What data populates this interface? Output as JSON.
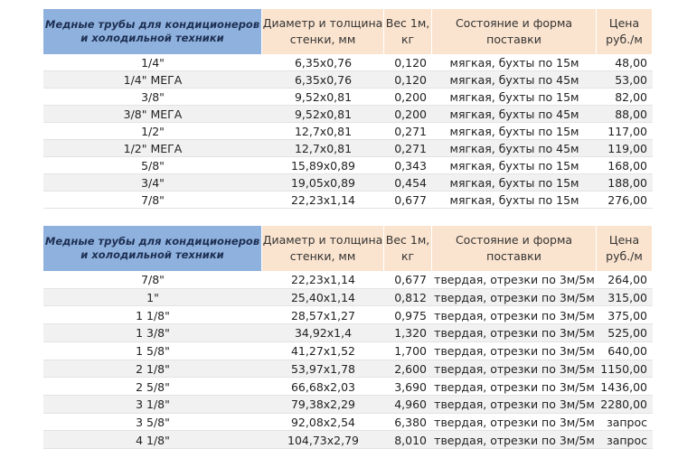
{
  "tables": [
    {
      "header": [
        "Медные трубы для кондиционеров и холодильной техники",
        "Диаметр и толщина стенки, мм",
        "Вес 1м, кг",
        "Состояние и форма поставки",
        "Цена руб./м"
      ],
      "rows": [
        [
          "1/4\"",
          "6,35x0,76",
          "0,120",
          "мягкая, бухты по 15м",
          "48,00"
        ],
        [
          "1/4\" МЕГА",
          "6,35x0,76",
          "0,120",
          "мягкая, бухты по 45м",
          "53,00"
        ],
        [
          "3/8\"",
          "9,52x0,81",
          "0,200",
          "мягкая, бухты по 15м",
          "82,00"
        ],
        [
          "3/8\" МЕГА",
          "9,52x0,81",
          "0,200",
          "мягкая, бухты по 45м",
          "88,00"
        ],
        [
          "1/2\"",
          "12,7x0,81",
          "0,271",
          "мягкая, бухты по 15м",
          "117,00"
        ],
        [
          "1/2\" МЕГА",
          "12,7x0,81",
          "0,271",
          "мягкая, бухты по 45м",
          "119,00"
        ],
        [
          "5/8\"",
          "15,89x0,89",
          "0,343",
          "мягкая, бухты по 15м",
          "168,00"
        ],
        [
          "3/4\"",
          "19,05x0,89",
          "0,454",
          "мягкая, бухты по 15м",
          "188,00"
        ],
        [
          "7/8\"",
          "22,23x1,14",
          "0,677",
          "мягкая, бухты по 15м",
          "276,00"
        ]
      ]
    },
    {
      "header": [
        "Медные трубы для кондиционеров и холодильной техники",
        "Диаметр и толщина стенки, мм",
        "Вес 1м, кг",
        "Состояние и форма поставки",
        "Цена руб./м"
      ],
      "rows": [
        [
          "7/8\"",
          "22,23x1,14",
          "0,677",
          "твердая, отрезки по 3м/5м",
          "264,00"
        ],
        [
          "1\"",
          "25,40x1,14",
          "0,812",
          "твердая, отрезки по 3м/5м",
          "315,00"
        ],
        [
          "1 1/8\"",
          "28,57x1,27",
          "0,975",
          "твердая, отрезки по 3м/5м",
          "375,00"
        ],
        [
          "1 3/8\"",
          "34,92x1,4",
          "1,320",
          "твердая, отрезки по 3м/5м",
          "525,00"
        ],
        [
          "1 5/8\"",
          "41,27x1,52",
          "1,700",
          "твердая, отрезки по 3м/5м",
          "640,00"
        ],
        [
          "2 1/8\"",
          "53,97x1,78",
          "2,600",
          "твердая, отрезки по 3м/5м",
          "1150,00"
        ],
        [
          "2 5/8\"",
          "66,68x2,03",
          "3,690",
          "твердая, отрезки по 3м/5м",
          "1436,00"
        ],
        [
          "3 1/8\"",
          "79,38x2,29",
          "4,960",
          "твердая, отрезки по 3м/5м",
          "2280,00"
        ],
        [
          "3 5/8\"",
          "92,08x2,54",
          "6,380",
          "твердая, отрезки по 3м/5м",
          "запрос"
        ],
        [
          "4 1/8\"",
          "104,73x2,79",
          "8,010",
          "твердая, отрезки по 3м/5м",
          "запрос"
        ]
      ]
    }
  ]
}
